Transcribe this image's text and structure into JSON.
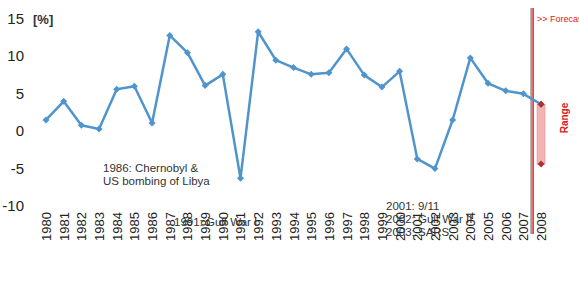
{
  "chart_data": {
    "type": "line",
    "y_label": "[%]",
    "categories": [
      "1980",
      "1981",
      "1982",
      "1983",
      "1984",
      "1985",
      "1986",
      "1987",
      "1988",
      "1989",
      "1990",
      "1991",
      "1992",
      "1993",
      "1994",
      "1995",
      "1996",
      "1997",
      "1998",
      "1999",
      "2000",
      "2001",
      "2002",
      "2003",
      "2004",
      "2005",
      "2006",
      "2007",
      "2008"
    ],
    "values": [
      1.5,
      4,
      0.8,
      0.3,
      5.6,
      6,
      1.1,
      12.8,
      10.5,
      6.1,
      7.6,
      -6.3,
      13.3,
      9.5,
      8.5,
      7.6,
      7.8,
      11,
      7.5,
      5.9,
      8,
      -3.7,
      -5,
      1.5,
      9.8,
      6.4,
      5.4,
      5,
      3.6
    ],
    "color": "#4f94cd",
    "marker": "diamond",
    "ylim": [
      -10,
      15
    ],
    "yticks": [
      -10,
      -5,
      0,
      5,
      10,
      15
    ],
    "grid": false,
    "annotations": [
      [
        "1986: Chernobyl &",
        "US bombing of Libya"
      ],
      [
        "1991: Gulf War I"
      ],
      [
        "2001: 9/11",
        "2002: Gulf War II",
        "2003: SARS"
      ]
    ],
    "forecast": {
      "text": ">> Forecast",
      "range_text": "Range",
      "range": [
        -4.4,
        3.6
      ],
      "color": "#e02020"
    }
  }
}
